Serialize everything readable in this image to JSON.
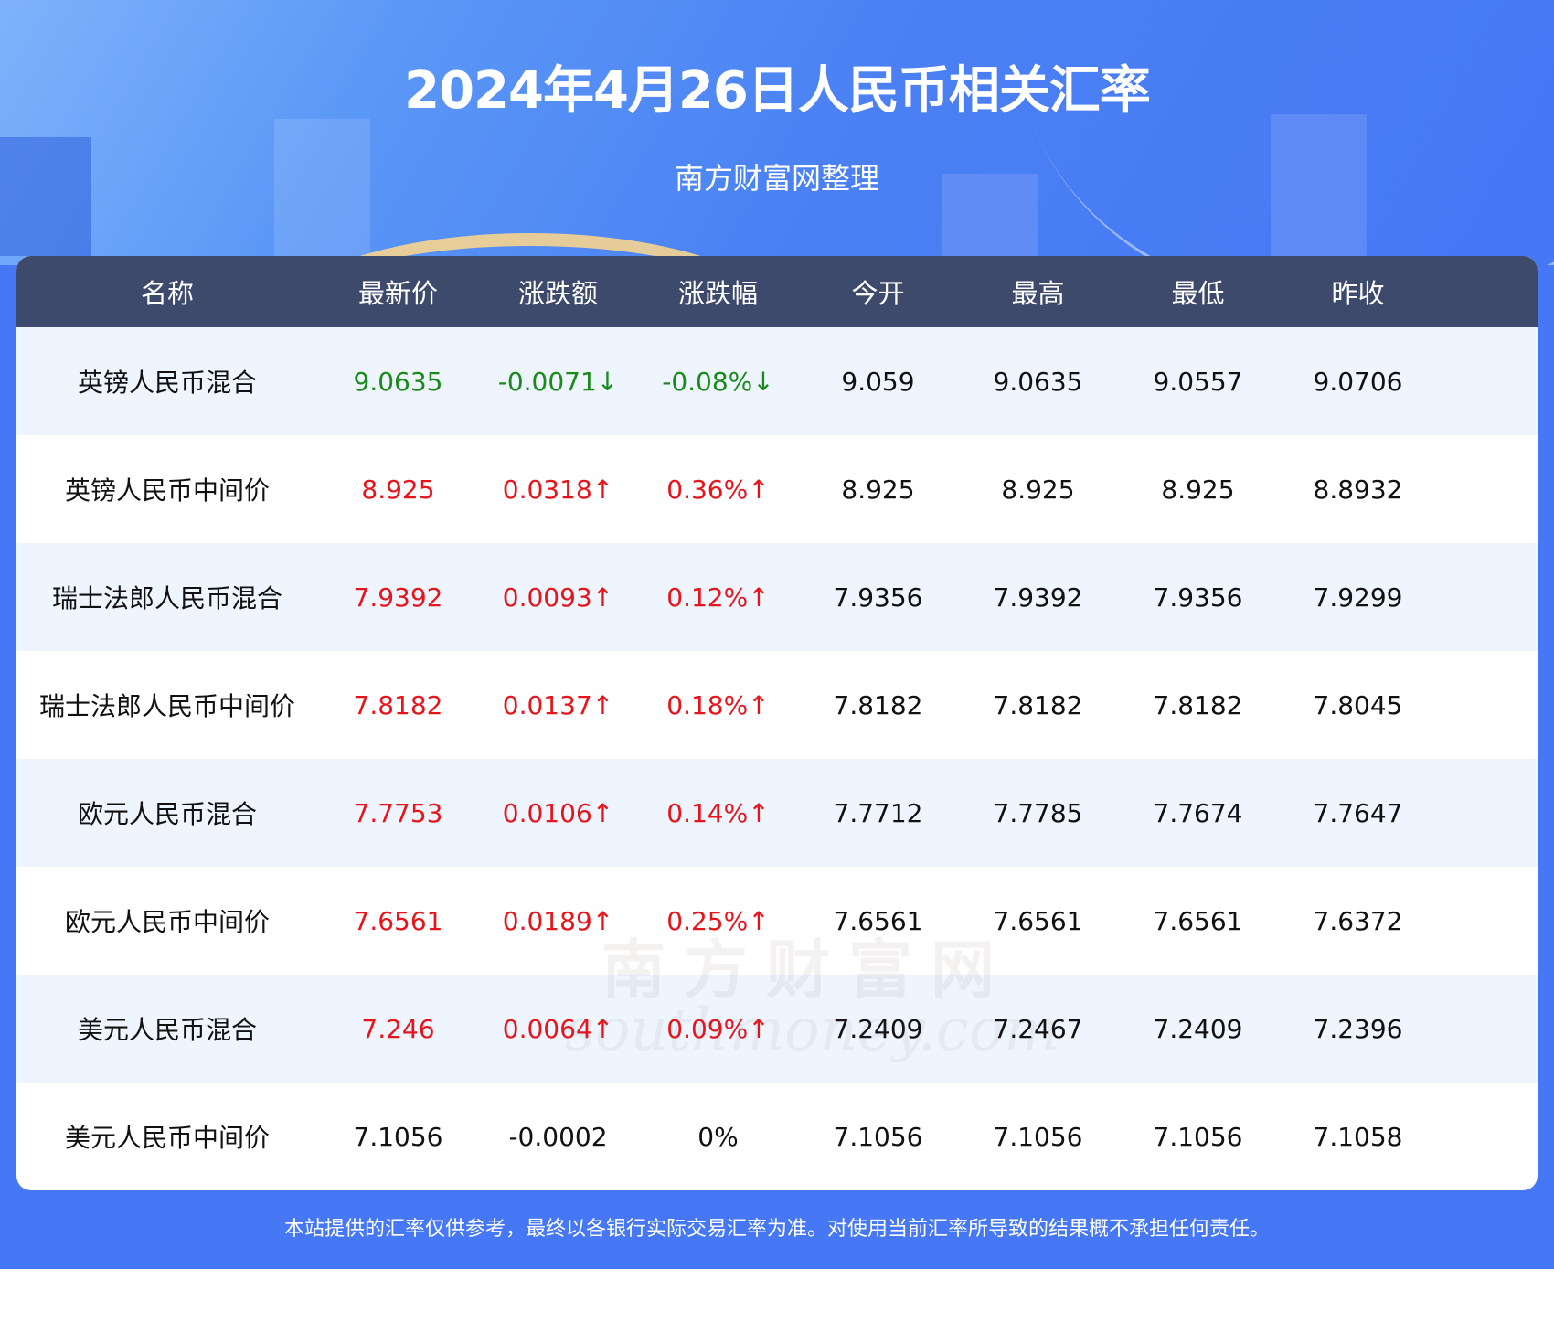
{
  "header": {
    "title": "2024年4月26日人民币相关汇率",
    "subtitle": "南方财富网整理"
  },
  "colors": {
    "background": "#4677f5",
    "table_header": "#3d4a6b",
    "row_alt": "#eef5fe",
    "up": "#e8141c",
    "down": "#1a8a1a"
  },
  "table": {
    "columns": [
      "名称",
      "最新价",
      "涨跌额",
      "涨跌幅",
      "今开",
      "最高",
      "最低",
      "昨收"
    ],
    "rows": [
      {
        "trend": "down",
        "cells": [
          "英镑人民币混合",
          "9.0635",
          "-0.0071↓",
          "-0.08%↓",
          "9.059",
          "9.0635",
          "9.0557",
          "9.0706"
        ]
      },
      {
        "trend": "up",
        "cells": [
          "英镑人民币中间价",
          "8.925",
          "0.0318↑",
          "0.36%↑",
          "8.925",
          "8.925",
          "8.925",
          "8.8932"
        ]
      },
      {
        "trend": "up",
        "cells": [
          "瑞士法郎人民币混合",
          "7.9392",
          "0.0093↑",
          "0.12%↑",
          "7.9356",
          "7.9392",
          "7.9356",
          "7.9299"
        ]
      },
      {
        "trend": "up",
        "cells": [
          "瑞士法郎人民币中间价",
          "7.8182",
          "0.0137↑",
          "0.18%↑",
          "7.8182",
          "7.8182",
          "7.8182",
          "7.8045"
        ]
      },
      {
        "trend": "up",
        "cells": [
          "欧元人民币混合",
          "7.7753",
          "0.0106↑",
          "0.14%↑",
          "7.7712",
          "7.7785",
          "7.7674",
          "7.7647"
        ]
      },
      {
        "trend": "up",
        "cells": [
          "欧元人民币中间价",
          "7.6561",
          "0.0189↑",
          "0.25%↑",
          "7.6561",
          "7.6561",
          "7.6561",
          "7.6372"
        ]
      },
      {
        "trend": "up",
        "cells": [
          "美元人民币混合",
          "7.246",
          "0.0064↑",
          "0.09%↑",
          "7.2409",
          "7.2467",
          "7.2409",
          "7.2396"
        ]
      },
      {
        "trend": "flat",
        "cells": [
          "美元人民币中间价",
          "7.1056",
          "-0.0002",
          "0%",
          "7.1056",
          "7.1056",
          "7.1056",
          "7.1058"
        ]
      }
    ]
  },
  "watermark": {
    "cn": "南方财富网",
    "en": "southmoney.com"
  },
  "footer": {
    "disclaimer": "本站提供的汇率仅供参考，最终以各银行实际交易汇率为准。对使用当前汇率所导致的结果概不承担任何责任。"
  }
}
